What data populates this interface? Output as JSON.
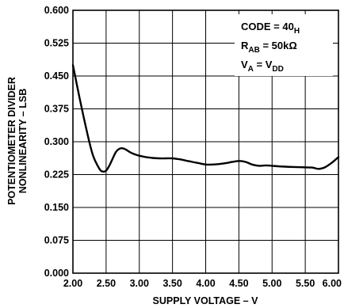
{
  "chart_data": {
    "type": "line",
    "xlabel": "SUPPLY VOLTAGE – V",
    "ylabel_line1": "POTENTIOMETER DIVIDER",
    "ylabel_line2": "NONLINEARITY – LSB",
    "xlim": [
      2.0,
      6.0
    ],
    "ylim": [
      0.0,
      0.6
    ],
    "x_ticks": [
      "2.00",
      "2.50",
      "3.00",
      "3.50",
      "4.00",
      "4.50",
      "5.00",
      "5.50",
      "6.00"
    ],
    "y_ticks": [
      "0.000",
      "0.075",
      "0.150",
      "0.225",
      "0.300",
      "0.375",
      "0.450",
      "0.525",
      "0.600"
    ],
    "grid": true,
    "annotations": [
      {
        "main": "CODE = 40",
        "sub": "H",
        "tail": ""
      },
      {
        "main": "R",
        "sub": "AB",
        "tail": " = 50kΩ"
      },
      {
        "main": "V",
        "sub": "A",
        "tail": " = V",
        "sub2": "DD"
      }
    ],
    "series": [
      {
        "x": [
          2.0,
          2.1,
          2.2,
          2.3,
          2.4,
          2.45,
          2.5,
          2.55,
          2.6,
          2.65,
          2.7,
          2.75,
          2.8,
          2.85,
          2.9,
          3.0,
          3.1,
          3.2,
          3.3,
          3.4,
          3.5,
          3.6,
          3.7,
          3.8,
          3.9,
          4.0,
          4.1,
          4.2,
          4.3,
          4.4,
          4.5,
          4.6,
          4.7,
          4.8,
          4.9,
          5.0,
          5.2,
          5.4,
          5.6,
          5.7,
          5.8,
          5.9,
          6.0
        ],
        "y": [
          0.475,
          0.4,
          0.33,
          0.27,
          0.238,
          0.232,
          0.234,
          0.246,
          0.262,
          0.277,
          0.284,
          0.285,
          0.282,
          0.277,
          0.273,
          0.268,
          0.265,
          0.263,
          0.262,
          0.262,
          0.262,
          0.26,
          0.257,
          0.254,
          0.251,
          0.248,
          0.248,
          0.249,
          0.251,
          0.254,
          0.256,
          0.254,
          0.248,
          0.245,
          0.246,
          0.245,
          0.243,
          0.242,
          0.241,
          0.238,
          0.242,
          0.252,
          0.265
        ]
      }
    ]
  }
}
